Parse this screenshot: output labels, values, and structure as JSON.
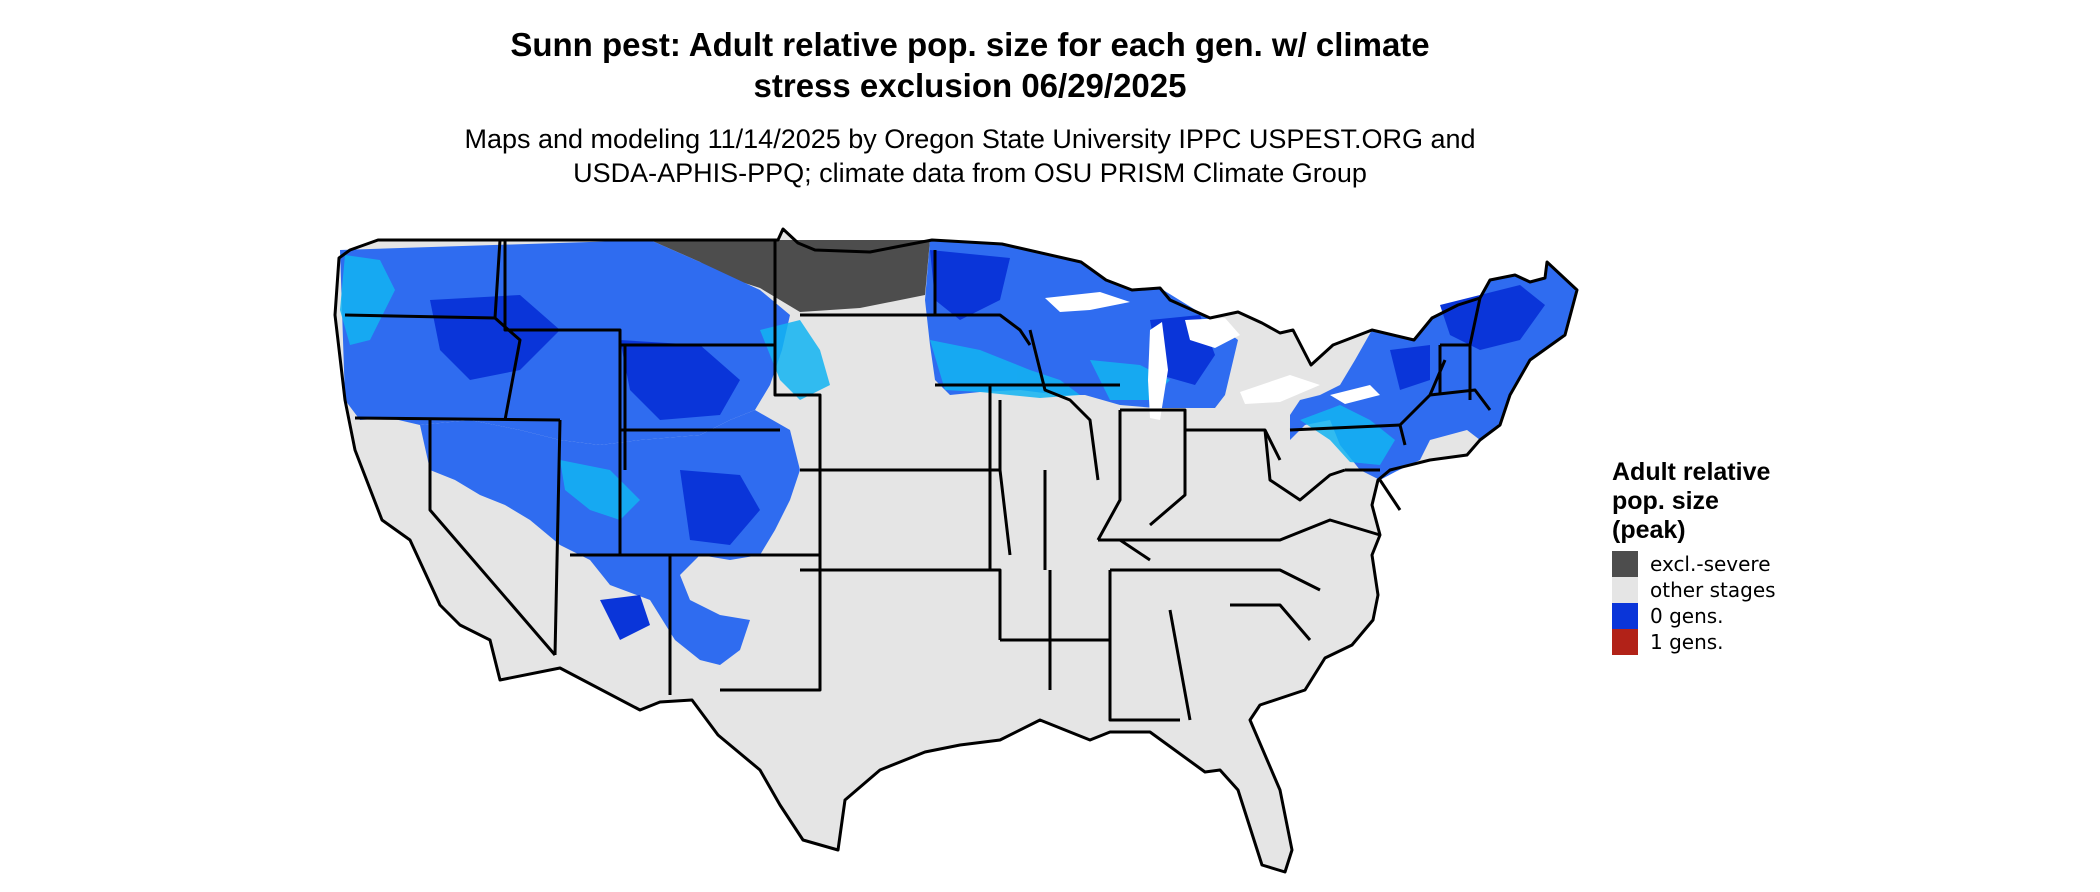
{
  "title": {
    "line1": "Sunn pest: Adult relative pop. size for each gen. w/ climate",
    "line2": "stress exclusion 06/29/2025"
  },
  "subtitle": {
    "line1": "Maps and modeling 11/14/2025 by Oregon State University IPPC USPEST.ORG and",
    "line2": "USDA-APHIS-PPQ; climate data from OSU PRISM Climate Group"
  },
  "legend": {
    "title_line1": "Adult relative",
    "title_line2": "pop. size",
    "title_line3": "(peak)",
    "items": [
      {
        "label": "excl.-severe",
        "color": "#4d4d4d"
      },
      {
        "label": "other stages",
        "color": "#e5e5e5"
      },
      {
        "label": "0 gens.",
        "color": "#0a35d9"
      },
      {
        "label": "1 gens.",
        "color": "#b22218"
      }
    ]
  },
  "colors": {
    "land": "#e5e5e5",
    "excluded": "#4d4d4d",
    "zero_gen_dark": "#0a35d9",
    "zero_gen_mid": "#2f6cf0",
    "zero_gen_light": "#12b4f2",
    "border": "#000000"
  }
}
